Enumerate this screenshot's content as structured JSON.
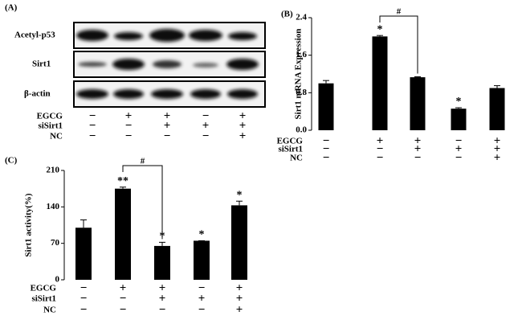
{
  "blot": {
    "panel_label": "(A)",
    "rows": [
      "Acetyl-p53",
      "Sirt1",
      "β-actin"
    ],
    "treatments": [
      {
        "name": "EGCG",
        "signs": [
          "−",
          "+",
          "+",
          "−",
          "+"
        ]
      },
      {
        "name": "siSirt1",
        "signs": [
          "−",
          "−",
          "+",
          "+",
          "+"
        ]
      },
      {
        "name": "NC",
        "signs": [
          "−",
          "−",
          "−",
          "−",
          "+"
        ]
      }
    ]
  },
  "chart_data": [
    {
      "type": "bar",
      "panel_label": "(B)",
      "y_label": "Sirt1 mRNA Expression",
      "categories": [
        null,
        null,
        null,
        null,
        null
      ],
      "values": [
        1.0,
        2.0,
        1.13,
        0.46,
        0.9
      ],
      "errors": [
        0.06,
        0.02,
        0.01,
        0.02,
        0.05
      ],
      "significance": [
        null,
        "*",
        null,
        "*",
        null
      ],
      "bracket_label": "#",
      "color": "#000000",
      "ylim": [
        0,
        2.4
      ],
      "yticks": [
        {
          "value": 0,
          "label": "0.0"
        },
        0.8,
        1.6,
        2.4
      ],
      "treatments": [
        {
          "name": "EGCG",
          "signs": [
            "−",
            "+",
            "+",
            "−",
            "+"
          ]
        },
        {
          "name": "siSirt1",
          "signs": [
            "−",
            "−",
            "+",
            "+",
            "+"
          ]
        },
        {
          "name": "NC",
          "signs": [
            "−",
            "−",
            "−",
            "−",
            "+"
          ]
        }
      ]
    },
    {
      "type": "bar",
      "panel_label": "(C)",
      "y_label": "Sirt1 activity(%)",
      "categories": [
        null,
        null,
        null,
        null,
        null
      ],
      "values": [
        100,
        175,
        65,
        75,
        143
      ],
      "errors": [
        15,
        3,
        7,
        0,
        8
      ],
      "significance": [
        null,
        "**",
        "*",
        "*",
        "*"
      ],
      "bracket_label": "#",
      "color": "#000000",
      "ylim": [
        0,
        210
      ],
      "yticks": [
        0,
        70,
        140,
        210
      ],
      "treatments": [
        {
          "name": "EGCG",
          "signs": [
            "−",
            "+",
            "+",
            "−",
            "+"
          ]
        },
        {
          "name": "siSirt1",
          "signs": [
            "−",
            "−",
            "+",
            "+",
            "+"
          ]
        },
        {
          "name": "NC",
          "signs": [
            "−",
            "−",
            "−",
            "−",
            "+"
          ]
        }
      ]
    }
  ]
}
